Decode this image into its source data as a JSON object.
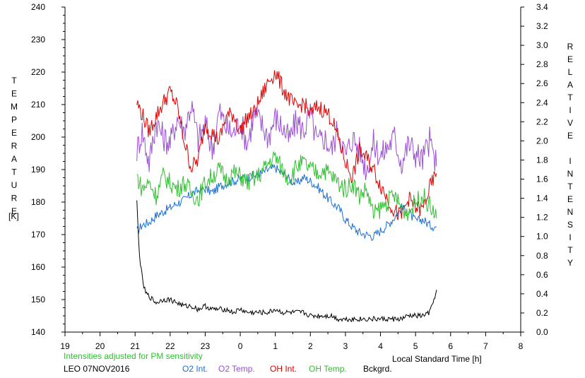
{
  "chart_data": {
    "type": "line",
    "left_axis": {
      "label": "TEMPERATURE",
      "unit": "[K]",
      "range": [
        140,
        240
      ],
      "ticks": [
        140,
        150,
        160,
        170,
        180,
        190,
        200,
        210,
        220,
        230,
        240
      ]
    },
    "right_axis": {
      "label": "RELATIVE INTENSITY",
      "range": [
        0.0,
        3.4
      ],
      "ticks": [
        "0.0",
        "0.2",
        "0.4",
        "0.6",
        "0.8",
        "1.0",
        "1.2",
        "1.4",
        "1.6",
        "1.8",
        "2.0",
        "2.2",
        "2.4",
        "2.6",
        "2.8",
        "3.0",
        "3.2",
        "3.4"
      ]
    },
    "x_axis": {
      "label": "Local Standard Time [h]",
      "range_hours": [
        19,
        32
      ],
      "tick_labels": [
        "19",
        "20",
        "21",
        "22",
        "23",
        "0",
        "1",
        "2",
        "3",
        "4",
        "5",
        "6",
        "7",
        "8"
      ]
    },
    "grid": false,
    "note": "Intensities adjusted for PM sensitivity",
    "station_date": "LEO 07NOV2016",
    "legend_position": "bottom",
    "series": [
      {
        "name": "O2 Int.",
        "axis": "right",
        "color": "#1a6fd6",
        "x": [
          21.05,
          21.2,
          21.4,
          21.6,
          21.8,
          22.0,
          22.2,
          22.4,
          22.6,
          22.8,
          23.0,
          23.2,
          23.4,
          23.6,
          23.8,
          24.0,
          24.2,
          24.4,
          24.6,
          24.8,
          25.0,
          25.2,
          25.4,
          25.6,
          25.8,
          26.0,
          26.2,
          26.4,
          26.6,
          26.8,
          27.0,
          27.2,
          27.4,
          27.6,
          27.8,
          28.0,
          28.2,
          28.4,
          28.6,
          28.8,
          29.0,
          29.2,
          29.4,
          29.6
        ],
        "values": [
          1.05,
          1.12,
          1.15,
          1.22,
          1.26,
          1.3,
          1.35,
          1.38,
          1.44,
          1.48,
          1.5,
          1.46,
          1.52,
          1.56,
          1.58,
          1.6,
          1.62,
          1.64,
          1.66,
          1.7,
          1.72,
          1.66,
          1.6,
          1.55,
          1.62,
          1.58,
          1.52,
          1.44,
          1.36,
          1.3,
          1.18,
          1.1,
          1.04,
          1.02,
          1.0,
          1.06,
          1.12,
          1.2,
          1.3,
          1.25,
          1.16,
          1.18,
          1.12,
          1.1
        ]
      },
      {
        "name": "O2 Temp.",
        "axis": "left",
        "color": "#9b4fd6",
        "x": [
          21.05,
          21.2,
          21.4,
          21.6,
          21.8,
          22.0,
          22.2,
          22.4,
          22.6,
          22.8,
          23.0,
          23.2,
          23.4,
          23.6,
          23.8,
          24.0,
          24.2,
          24.4,
          24.6,
          24.8,
          25.0,
          25.2,
          25.4,
          25.6,
          25.8,
          26.0,
          26.2,
          26.4,
          26.6,
          26.8,
          27.0,
          27.2,
          27.4,
          27.6,
          27.8,
          28.0,
          28.2,
          28.4,
          28.6,
          28.8,
          29.0,
          29.2,
          29.4,
          29.6
        ],
        "values": [
          196,
          202,
          192,
          205,
          200,
          198,
          206,
          202,
          210,
          199,
          204,
          196,
          208,
          203,
          201,
          205,
          198,
          207,
          204,
          200,
          206,
          203,
          199,
          205,
          202,
          207,
          198,
          200,
          196,
          203,
          194,
          200,
          196,
          190,
          198,
          194,
          197,
          200,
          192,
          198,
          195,
          193,
          199,
          191
        ]
      },
      {
        "name": "OH Int.",
        "axis": "right",
        "color": "#e00000",
        "x": [
          21.05,
          21.2,
          21.4,
          21.6,
          21.8,
          22.0,
          22.2,
          22.4,
          22.6,
          22.8,
          23.0,
          23.2,
          23.4,
          23.6,
          23.8,
          24.0,
          24.2,
          24.4,
          24.6,
          24.8,
          25.0,
          25.2,
          25.4,
          25.6,
          25.8,
          26.0,
          26.2,
          26.4,
          26.6,
          26.8,
          27.0,
          27.2,
          27.4,
          27.6,
          27.8,
          28.0,
          28.2,
          28.4,
          28.6,
          28.8,
          29.0,
          29.2,
          29.4,
          29.6
        ],
        "values": [
          2.4,
          2.28,
          2.1,
          2.26,
          2.4,
          2.52,
          2.36,
          2.0,
          1.72,
          1.8,
          2.18,
          2.08,
          2.0,
          2.26,
          2.28,
          2.1,
          2.24,
          2.3,
          2.46,
          2.62,
          2.72,
          2.56,
          2.44,
          2.34,
          2.4,
          2.28,
          2.36,
          2.32,
          2.24,
          2.02,
          1.78,
          1.62,
          1.9,
          1.82,
          1.7,
          1.54,
          1.4,
          1.26,
          1.22,
          1.4,
          1.3,
          1.28,
          1.5,
          1.66
        ]
      },
      {
        "name": "OH Temp.",
        "axis": "left",
        "color": "#2fc02f",
        "x": [
          21.05,
          21.2,
          21.4,
          21.6,
          21.8,
          22.0,
          22.2,
          22.4,
          22.6,
          22.8,
          23.0,
          23.2,
          23.4,
          23.6,
          23.8,
          24.0,
          24.2,
          24.4,
          24.6,
          24.8,
          25.0,
          25.2,
          25.4,
          25.6,
          25.8,
          26.0,
          26.2,
          26.4,
          26.6,
          26.8,
          27.0,
          27.2,
          27.4,
          27.6,
          27.8,
          28.0,
          28.2,
          28.4,
          28.6,
          28.8,
          29.0,
          29.2,
          29.4,
          29.6
        ],
        "values": [
          188,
          184,
          186,
          182,
          188,
          186,
          184,
          186,
          183,
          181,
          186,
          188,
          190,
          187,
          189,
          188,
          186,
          187,
          189,
          192,
          194,
          190,
          187,
          191,
          192,
          190,
          189,
          190,
          188,
          186,
          184,
          186,
          182,
          184,
          176,
          178,
          180,
          182,
          178,
          177,
          180,
          182,
          179,
          175
        ]
      },
      {
        "name": "Bckgrd.",
        "axis": "left",
        "color": "#000000",
        "x": [
          21.05,
          21.1,
          21.15,
          21.2,
          21.25,
          21.3,
          21.4,
          21.5,
          21.6,
          21.8,
          22.0,
          22.2,
          22.4,
          22.6,
          22.8,
          23.0,
          23.2,
          23.4,
          23.6,
          23.8,
          24.0,
          24.2,
          24.4,
          24.6,
          24.8,
          25.0,
          25.2,
          25.4,
          25.6,
          25.8,
          26.0,
          26.2,
          26.4,
          26.6,
          26.8,
          27.0,
          27.2,
          27.4,
          27.6,
          27.8,
          28.0,
          28.2,
          28.4,
          28.6,
          28.8,
          29.0,
          29.2,
          29.4,
          29.5,
          29.6
        ],
        "values": [
          180,
          168,
          161,
          157,
          154,
          152,
          151,
          150,
          149,
          150,
          150,
          149,
          148,
          148,
          147,
          148,
          147,
          147,
          147,
          146,
          147,
          146,
          146,
          146,
          146,
          147,
          146,
          146,
          146,
          146,
          145,
          145,
          145,
          145,
          144,
          144,
          144,
          144,
          144,
          144,
          144,
          144,
          144,
          144,
          145,
          145,
          145,
          146,
          149,
          153
        ]
      }
    ]
  }
}
